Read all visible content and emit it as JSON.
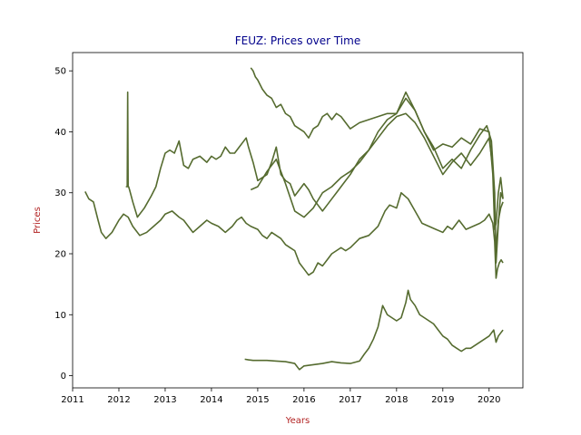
{
  "chart_data": {
    "type": "line",
    "title": "FEUZ: Prices over Time",
    "xlabel": "Years",
    "ylabel": "Prices",
    "xlim": [
      2011.0,
      2020.73
    ],
    "ylim": [
      -2.0,
      53.0
    ],
    "x_ticks": [
      2011,
      2012,
      2013,
      2014,
      2015,
      2016,
      2017,
      2018,
      2019,
      2020
    ],
    "x_tick_labels": [
      "2011",
      "2012",
      "2013",
      "2014",
      "2015",
      "2016",
      "2017",
      "2018",
      "2019",
      "2020"
    ],
    "y_ticks": [
      0,
      10,
      20,
      30,
      40,
      50
    ],
    "y_tick_labels": [
      "0",
      "10",
      "20",
      "30",
      "40",
      "50"
    ],
    "grid": false,
    "legend": "none",
    "colors": {
      "line": "#556b2f",
      "title": "#00008b",
      "axis_label": "#b22222"
    },
    "series": [
      {
        "x": [
          2011.27,
          2011.35,
          2011.45,
          2011.55,
          2011.62,
          2011.72,
          2011.85,
          2012.0,
          2012.1,
          2012.2,
          2012.3,
          2012.45,
          2012.6,
          2012.75,
          2012.9,
          2013.0,
          2013.15,
          2013.3,
          2013.4,
          2013.5,
          2013.6,
          2013.75,
          2013.9,
          2014.0,
          2014.15,
          2014.3,
          2014.45,
          2014.55,
          2014.65,
          2014.75,
          2014.85,
          2015.0,
          2015.1,
          2015.2,
          2015.3,
          2015.4,
          2015.5,
          2015.6,
          2015.7,
          2015.8,
          2015.9,
          2016.0,
          2016.1,
          2016.2,
          2016.3,
          2016.4,
          2016.5,
          2016.6,
          2016.7,
          2016.8,
          2016.9,
          2017.0,
          2017.2,
          2017.4,
          2017.6,
          2017.75,
          2017.85,
          2018.0,
          2018.1,
          2018.25,
          2018.4,
          2018.55,
          2018.7,
          2018.85,
          2019.0,
          2019.1,
          2019.2,
          2019.35,
          2019.5,
          2019.65,
          2019.8,
          2019.9,
          2020.0,
          2020.08,
          2020.12,
          2020.15,
          2020.18,
          2020.22,
          2020.26,
          2020.3
        ],
        "y": [
          30.2,
          29.0,
          28.5,
          25.5,
          23.5,
          22.5,
          23.5,
          25.5,
          26.5,
          26.0,
          24.5,
          23.0,
          23.5,
          24.5,
          25.5,
          26.5,
          27.0,
          26.0,
          25.5,
          24.5,
          23.5,
          24.5,
          25.5,
          25.0,
          24.5,
          23.5,
          24.5,
          25.5,
          26.0,
          25.0,
          24.5,
          24.0,
          23.0,
          22.5,
          23.5,
          23.0,
          22.5,
          21.5,
          21.0,
          20.5,
          18.5,
          17.5,
          16.5,
          17.0,
          18.5,
          18.0,
          19.0,
          20.0,
          20.5,
          21.0,
          20.5,
          21.0,
          22.5,
          23.0,
          24.5,
          27.0,
          28.0,
          27.5,
          30.0,
          29.0,
          27.0,
          25.0,
          24.5,
          24.0,
          23.5,
          24.5,
          24.0,
          25.5,
          24.0,
          24.5,
          25.0,
          25.5,
          26.5,
          25.0,
          22.0,
          16.0,
          17.5,
          18.5,
          19.0,
          18.5
        ]
      },
      {
        "x": [
          2012.15,
          2012.18,
          2012.19,
          2012.2,
          2012.21,
          2012.23,
          2012.3,
          2012.4,
          2012.55,
          2012.7,
          2012.8,
          2012.9,
          2013.0,
          2013.1,
          2013.2,
          2013.3,
          2013.4,
          2013.5,
          2013.6,
          2013.75,
          2013.9,
          2014.0,
          2014.1,
          2014.2,
          2014.3,
          2014.4,
          2014.5,
          2014.6,
          2014.7,
          2014.75,
          2014.8,
          2014.9,
          2015.0,
          2015.1,
          2015.2,
          2015.3,
          2015.4,
          2015.5,
          2015.6,
          2015.7,
          2015.8,
          2015.9,
          2016.0,
          2016.1,
          2016.2,
          2016.3,
          2016.4,
          2016.5,
          2016.6,
          2016.7,
          2016.8,
          2016.9,
          2017.0,
          2017.2,
          2017.4,
          2017.6,
          2017.8,
          2018.0,
          2018.2,
          2018.4,
          2018.6,
          2018.8,
          2019.0,
          2019.2,
          2019.4,
          2019.6,
          2019.8,
          2019.95,
          2020.05,
          2020.12,
          2020.15,
          2020.2,
          2020.25,
          2020.3
        ],
        "y": [
          31.0,
          31.0,
          46.5,
          31.0,
          31.0,
          30.5,
          28.5,
          26.0,
          27.5,
          29.5,
          31.0,
          34.0,
          36.5,
          37.0,
          36.5,
          38.5,
          34.5,
          34.0,
          35.5,
          36.0,
          35.0,
          36.0,
          35.5,
          36.0,
          37.5,
          36.5,
          36.5,
          37.5,
          38.5,
          39.0,
          37.5,
          35.0,
          32.0,
          32.5,
          33.0,
          35.0,
          37.5,
          33.0,
          32.0,
          31.5,
          29.5,
          30.5,
          31.5,
          30.5,
          29.0,
          28.0,
          27.0,
          28.0,
          29.0,
          30.0,
          31.0,
          32.0,
          33.0,
          35.5,
          37.0,
          40.0,
          42.0,
          43.0,
          46.5,
          43.5,
          40.0,
          37.5,
          34.0,
          35.5,
          34.0,
          37.0,
          39.5,
          41.0,
          38.5,
          30.0,
          18.5,
          25.0,
          30.0,
          29.0
        ]
      },
      {
        "x": [
          2014.85,
          2014.9,
          2014.95,
          2015.0,
          2015.1,
          2015.2,
          2015.3,
          2015.4,
          2015.5,
          2015.6,
          2015.7,
          2015.8,
          2015.9,
          2016.0,
          2016.1,
          2016.2,
          2016.3,
          2016.4,
          2016.5,
          2016.6,
          2016.7,
          2016.8,
          2016.9,
          2017.0,
          2017.2,
          2017.4,
          2017.6,
          2017.8,
          2018.0,
          2018.2,
          2018.4,
          2018.6,
          2018.8,
          2019.0,
          2019.2,
          2019.4,
          2019.6,
          2019.8,
          2020.0,
          2020.08,
          2020.12,
          2020.15,
          2020.2,
          2020.25,
          2020.3
        ],
        "y": [
          50.5,
          50.0,
          49.0,
          48.5,
          47.0,
          46.0,
          45.5,
          44.0,
          44.5,
          43.0,
          42.5,
          41.0,
          40.5,
          40.0,
          39.0,
          40.5,
          41.0,
          42.5,
          43.0,
          42.0,
          43.0,
          42.5,
          41.5,
          40.5,
          41.5,
          42.0,
          42.5,
          43.0,
          43.0,
          45.5,
          43.5,
          40.0,
          37.0,
          38.0,
          37.5,
          39.0,
          38.0,
          40.5,
          40.0,
          33.0,
          24.0,
          25.0,
          30.0,
          32.5,
          29.0
        ]
      },
      {
        "x": [
          2014.85,
          2015.0,
          2015.2,
          2015.4,
          2015.6,
          2015.8,
          2016.0,
          2016.2,
          2016.4,
          2016.6,
          2016.8,
          2017.0,
          2017.2,
          2017.4,
          2017.6,
          2017.8,
          2018.0,
          2018.2,
          2018.4,
          2018.6,
          2018.8,
          2019.0,
          2019.2,
          2019.4,
          2019.6,
          2019.8,
          2020.0,
          2020.08,
          2020.12,
          2020.15,
          2020.2,
          2020.25,
          2020.3
        ],
        "y": [
          30.5,
          31.0,
          33.5,
          35.5,
          31.5,
          27.0,
          26.0,
          27.5,
          30.0,
          31.0,
          32.5,
          33.5,
          35.0,
          37.0,
          39.0,
          41.0,
          42.5,
          43.0,
          41.5,
          39.0,
          36.0,
          33.0,
          35.0,
          36.5,
          34.5,
          36.5,
          39.0,
          34.0,
          27.0,
          20.5,
          25.5,
          27.5,
          28.5
        ]
      },
      {
        "x": [
          2014.72,
          2014.8,
          2014.9,
          2015.0,
          2015.2,
          2015.4,
          2015.6,
          2015.8,
          2015.9,
          2016.0,
          2016.2,
          2016.4,
          2016.6,
          2016.8,
          2017.0,
          2017.2,
          2017.3,
          2017.4,
          2017.5,
          2017.6,
          2017.7,
          2017.8,
          2017.9,
          2018.0,
          2018.1,
          2018.2,
          2018.25,
          2018.3,
          2018.4,
          2018.5,
          2018.6,
          2018.7,
          2018.8,
          2018.9,
          2019.0,
          2019.1,
          2019.2,
          2019.3,
          2019.4,
          2019.5,
          2019.6,
          2019.7,
          2019.8,
          2019.9,
          2020.0,
          2020.1,
          2020.15,
          2020.2,
          2020.25,
          2020.3
        ],
        "y": [
          2.7,
          2.6,
          2.5,
          2.5,
          2.5,
          2.4,
          2.3,
          2.0,
          1.0,
          1.6,
          1.8,
          2.0,
          2.3,
          2.1,
          2.0,
          2.4,
          3.5,
          4.5,
          6.0,
          8.0,
          11.5,
          10.0,
          9.5,
          9.0,
          9.5,
          12.0,
          14.0,
          12.5,
          11.5,
          10.0,
          9.5,
          9.0,
          8.5,
          7.5,
          6.5,
          6.0,
          5.0,
          4.5,
          4.0,
          4.5,
          4.5,
          5.0,
          5.5,
          6.0,
          6.5,
          7.5,
          5.5,
          6.5,
          7.0,
          7.5
        ]
      }
    ]
  }
}
